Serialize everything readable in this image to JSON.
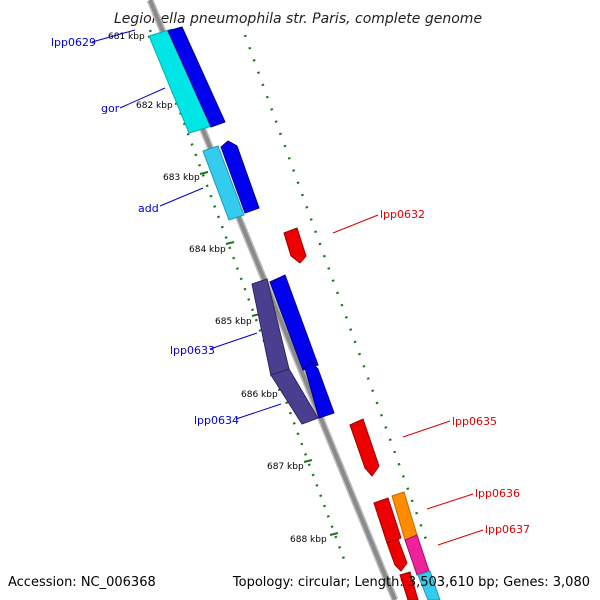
{
  "title": "Legionella pneumophila str. Paris, complete genome",
  "footer": {
    "accession": "Accession: NC_006368",
    "topology": "Topology: circular; Length: 3,503,610 bp; Genes: 3,080"
  },
  "ticks": [
    "681 kbp",
    "682 kbp",
    "683 kbp",
    "684 kbp",
    "685 kbp",
    "686 kbp",
    "687 kbp",
    "688 kbp"
  ],
  "genes": [
    {
      "id": "lpp0629",
      "label": "lpp0629",
      "strand": "left",
      "color": "#0000cc"
    },
    {
      "id": "gor",
      "label": "gor",
      "strand": "left",
      "color": "#0000cc"
    },
    {
      "id": "add",
      "label": "add",
      "strand": "left",
      "color": "#0000cc"
    },
    {
      "id": "lpp0632",
      "label": "lpp0632",
      "strand": "right",
      "color": "#dd0000"
    },
    {
      "id": "lpp0633",
      "label": "lpp0633",
      "strand": "left",
      "color": "#0000cc"
    },
    {
      "id": "lpp0634",
      "label": "lpp0634",
      "strand": "left",
      "color": "#0000cc"
    },
    {
      "id": "lpp0635",
      "label": "lpp0635",
      "strand": "right",
      "color": "#dd0000"
    },
    {
      "id": "lpp0636",
      "label": "lpp0636",
      "strand": "right",
      "color": "#dd0000"
    },
    {
      "id": "lpp0637",
      "label": "lpp0637",
      "strand": "right",
      "color": "#dd0000"
    }
  ],
  "colors": {
    "backbone": "#8a8a8a",
    "tick_marks": "#1a7a1a",
    "forward_gene": "#0000ee",
    "cyan_feature": "#00e5e5",
    "light_blue_feature": "#33ccee",
    "slate_feature": "#4a3f8f",
    "reverse_gene": "#ee0000",
    "orange_feature": "#ff8c00",
    "pink_feature": "#ee2299"
  }
}
